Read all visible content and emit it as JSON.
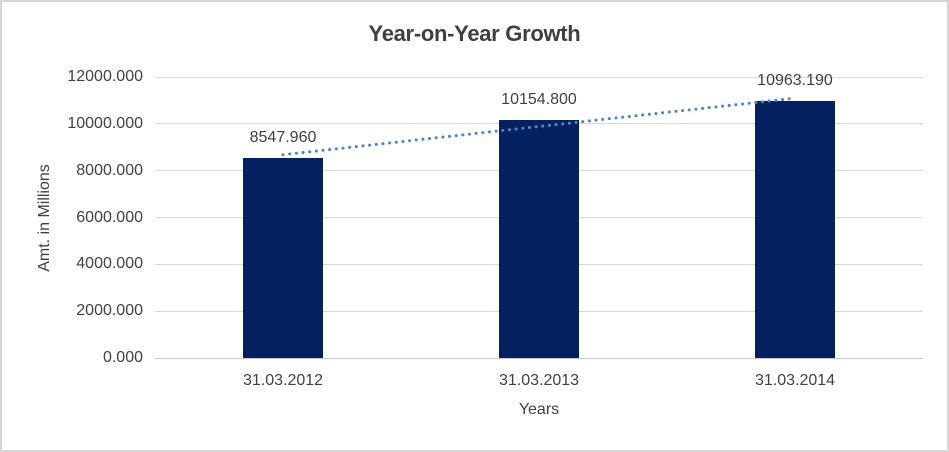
{
  "chart_data": {
    "type": "bar",
    "title": "Year-on-Year Growth",
    "xlabel": "Years",
    "ylabel": "Amt. in Millions",
    "categories": [
      "31.03.2012",
      "31.03.2013",
      "31.03.2014"
    ],
    "values": [
      8547.96,
      10154.8,
      10963.19
    ],
    "data_labels": [
      "8547.960",
      "10154.800",
      "10963.190"
    ],
    "ylim": [
      0,
      12000
    ],
    "ytick_step": 2000,
    "ytick_labels": [
      "0.000",
      "2000.000",
      "4000.000",
      "6000.000",
      "8000.000",
      "10000.000",
      "12000.000"
    ],
    "grid": true,
    "legend": "none",
    "bar_color": "#02215e",
    "trendline": {
      "type": "linear",
      "style": "dotted",
      "color": "#4a86c8"
    }
  }
}
